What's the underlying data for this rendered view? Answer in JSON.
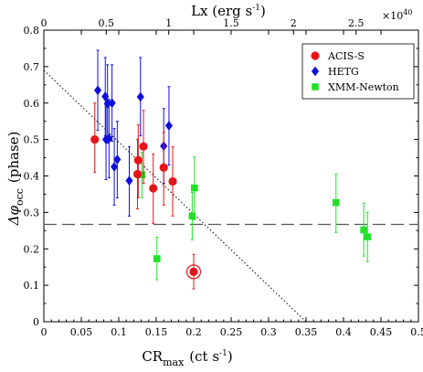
{
  "chart_data": {
    "type": "scatter",
    "xlabel": "CR",
    "xlabel_sub": "max",
    "xlabel_units": "(ct s",
    "xlabel_exp": "-1",
    "xlabel_close": ")",
    "ylabel_prefix": "Δφ",
    "ylabel_sub": "occ",
    "ylabel_suffix": "(phase)",
    "top_label": "Lx (erg s",
    "top_label_exp": "-1",
    "top_label_close": ")",
    "top_multiplier": "×10",
    "top_multiplier_exp": "40",
    "xlim": [
      0,
      0.5
    ],
    "ylim": [
      0,
      0.8
    ],
    "x_ticks": [
      "0",
      "0.05",
      "0.1",
      "0.15",
      "0.2",
      "0.25",
      "0.3",
      "0.35",
      "0.4",
      "0.45",
      "0.5"
    ],
    "x_tick_values": [
      0,
      0.05,
      0.1,
      0.15,
      0.2,
      0.25,
      0.3,
      0.35,
      0.4,
      0.45,
      0.5
    ],
    "y_ticks": [
      "0",
      "0.1",
      "0.2",
      "0.3",
      "0.4",
      "0.5",
      "0.6",
      "0.7",
      "0.8"
    ],
    "y_tick_values": [
      0,
      0.1,
      0.2,
      0.3,
      0.4,
      0.5,
      0.6,
      0.7,
      0.8
    ],
    "top_ticks": [
      "0",
      "0.5",
      "1",
      "1.5",
      "2",
      "2.5"
    ],
    "top_tick_cr": [
      0,
      0.0833,
      0.1667,
      0.25,
      0.3333,
      0.4167
    ],
    "hline": 0.267,
    "dotted_line": {
      "x": [
        0,
        0.35
      ],
      "y": [
        0.69,
        0
      ]
    },
    "series": [
      {
        "name": "ACIS-S",
        "color": "#e8141b",
        "marker": "circle",
        "points": [
          {
            "x": 0.068,
            "y": 0.5,
            "lo": 0.41,
            "hi": 0.6
          },
          {
            "x": 0.125,
            "y": 0.405,
            "lo": 0.31,
            "hi": 0.5
          },
          {
            "x": 0.126,
            "y": 0.443,
            "lo": 0.34,
            "hi": 0.54
          },
          {
            "x": 0.133,
            "y": 0.481,
            "lo": 0.38,
            "hi": 0.58
          },
          {
            "x": 0.146,
            "y": 0.366,
            "lo": 0.27,
            "hi": 0.46
          },
          {
            "x": 0.16,
            "y": 0.423,
            "lo": 0.32,
            "hi": 0.52
          },
          {
            "x": 0.172,
            "y": 0.385,
            "lo": 0.29,
            "hi": 0.48
          },
          {
            "x": 0.2,
            "y": 0.137,
            "lo": 0.09,
            "hi": 0.185,
            "highlighted": true
          }
        ]
      },
      {
        "name": "HETG",
        "color": "#1010d8",
        "marker": "diamond",
        "points": [
          {
            "x": 0.072,
            "y": 0.635,
            "lo": 0.525,
            "hi": 0.745
          },
          {
            "x": 0.082,
            "y": 0.618,
            "lo": 0.51,
            "hi": 0.725
          },
          {
            "x": 0.085,
            "y": 0.598,
            "lo": 0.49,
            "hi": 0.705
          },
          {
            "x": 0.083,
            "y": 0.5,
            "lo": 0.39,
            "hi": 0.61
          },
          {
            "x": 0.087,
            "y": 0.503,
            "lo": 0.395,
            "hi": 0.61
          },
          {
            "x": 0.091,
            "y": 0.6,
            "lo": 0.495,
            "hi": 0.705
          },
          {
            "x": 0.094,
            "y": 0.425,
            "lo": 0.32,
            "hi": 0.53
          },
          {
            "x": 0.098,
            "y": 0.445,
            "lo": 0.34,
            "hi": 0.55
          },
          {
            "x": 0.114,
            "y": 0.387,
            "lo": 0.29,
            "hi": 0.48
          },
          {
            "x": 0.129,
            "y": 0.617,
            "lo": 0.51,
            "hi": 0.725
          },
          {
            "x": 0.16,
            "y": 0.482,
            "lo": 0.38,
            "hi": 0.585
          },
          {
            "x": 0.167,
            "y": 0.538,
            "lo": 0.43,
            "hi": 0.645
          }
        ]
      },
      {
        "name": "XMM-Newton",
        "color": "#22e02a",
        "marker": "square",
        "points": [
          {
            "x": 0.131,
            "y": 0.403,
            "lo": 0.34,
            "hi": 0.465
          },
          {
            "x": 0.151,
            "y": 0.173,
            "lo": 0.115,
            "hi": 0.232
          },
          {
            "x": 0.198,
            "y": 0.29,
            "lo": 0.225,
            "hi": 0.355
          },
          {
            "x": 0.201,
            "y": 0.367,
            "lo": 0.28,
            "hi": 0.452
          },
          {
            "x": 0.39,
            "y": 0.327,
            "lo": 0.245,
            "hi": 0.405
          },
          {
            "x": 0.427,
            "y": 0.252,
            "lo": 0.18,
            "hi": 0.325
          },
          {
            "x": 0.432,
            "y": 0.233,
            "lo": 0.165,
            "hi": 0.3
          }
        ]
      }
    ],
    "legend_placement": "top-right"
  }
}
